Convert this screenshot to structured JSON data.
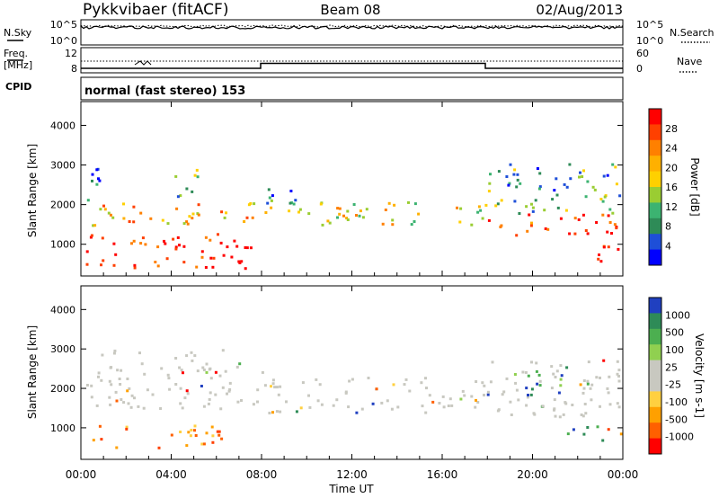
{
  "header": {
    "title": "Pykkvibaer (fitACF)",
    "beam": "Beam 08",
    "date": "02/Aug/2013"
  },
  "strip": {
    "nsky_label": "N.Sky",
    "nsky_ticks": [
      "10^5",
      "10^0"
    ],
    "nsearch_label": "N.Search",
    "nsearch_ticks": [
      "10^5",
      "10^0"
    ],
    "freq_label_1": "Freq.",
    "freq_label_2": "[MHz]",
    "freq_ticks": [
      "12",
      "8"
    ],
    "nave_label": "Nave",
    "nave_ticks": [
      "60",
      "0"
    ],
    "cpid_label": "CPID",
    "cpid_text": "normal (fast stereo) 153"
  },
  "chart_data": [
    {
      "type": "heatmap",
      "panel": "power",
      "ylabel": "Slant Range [km]",
      "yticks": [
        "1000",
        "2000",
        "3000",
        "4000"
      ],
      "ylim": [
        200,
        4600
      ],
      "colorbar": {
        "label": "Power [dB]",
        "ticks": [
          "28",
          "24",
          "20",
          "16",
          "12",
          "8",
          "4"
        ],
        "colors": [
          "#ff0000",
          "#ff4000",
          "#ff8000",
          "#ffb000",
          "#ffd000",
          "#9acd32",
          "#3cb371",
          "#2e8b57",
          "#1e4fd8",
          "#0000ff"
        ]
      },
      "x_range_hours": [
        0,
        24
      ],
      "echo_bands": [
        {
          "t": [
            0.2,
            8.0
          ],
          "r": [
            1500,
            2100
          ],
          "level": 0.65
        },
        {
          "t": [
            0.2,
            7.8
          ],
          "r": [
            400,
            1300
          ],
          "level": 0.95
        },
        {
          "t": [
            0.2,
            1.3
          ],
          "r": [
            2100,
            3100
          ],
          "level": 0.2
        },
        {
          "t": [
            4.1,
            5.4
          ],
          "r": [
            2200,
            2950
          ],
          "level": 0.3
        },
        {
          "t": [
            8.0,
            18.0
          ],
          "r": [
            1500,
            2100
          ],
          "level": 0.55
        },
        {
          "t": [
            8.0,
            11.0
          ],
          "r": [
            2050,
            2450
          ],
          "level": 0.25
        },
        {
          "t": [
            18.0,
            23.9
          ],
          "r": [
            1200,
            1800
          ],
          "level": 0.9
        },
        {
          "t": [
            18.0,
            23.9
          ],
          "r": [
            1800,
            3100
          ],
          "level": 0.3
        },
        {
          "t": [
            22.0,
            23.9
          ],
          "r": [
            600,
            1050
          ],
          "level": 0.95
        }
      ]
    },
    {
      "type": "heatmap",
      "panel": "velocity",
      "ylabel": "Slant Range [km]",
      "yticks": [
        "1000",
        "2000",
        "3000",
        "4000"
      ],
      "ylim": [
        200,
        4600
      ],
      "xlabel": "Time UT",
      "xticks": [
        "00:00",
        "04:00",
        "08:00",
        "12:00",
        "16:00",
        "20:00",
        "00:00"
      ],
      "x_range_hours": [
        0,
        24
      ],
      "colorbar": {
        "label": "Velocity [m s-1]",
        "ticks": [
          "1000",
          "500",
          "100",
          "25",
          "-25",
          "-100",
          "-500",
          "-1000"
        ],
        "colors": [
          "#2040c0",
          "#2e8b57",
          "#4caf50",
          "#90d050",
          "#c8c8c0",
          "#c8c8c0",
          "#ffd040",
          "#ffa000",
          "#ff6000",
          "#ff0000"
        ]
      },
      "echo_bands": [
        {
          "t": [
            0.2,
            8.0
          ],
          "r": [
            1500,
            3000
          ],
          "kind": "gray"
        },
        {
          "t": [
            0.5,
            6.2
          ],
          "r": [
            500,
            1100
          ],
          "kind": "orange"
        },
        {
          "t": [
            8.0,
            18.0
          ],
          "r": [
            1400,
            2300
          ],
          "kind": "gray"
        },
        {
          "t": [
            18.0,
            23.9
          ],
          "r": [
            1300,
            2800
          ],
          "kind": "gray"
        },
        {
          "t": [
            19.0,
            21.5
          ],
          "r": [
            1800,
            2600
          ],
          "kind": "green"
        },
        {
          "t": [
            21.5,
            23.5
          ],
          "r": [
            700,
            1100
          ],
          "kind": "green"
        },
        {
          "t": [
            23.0,
            23.9
          ],
          "r": [
            700,
            1000
          ],
          "kind": "orange"
        }
      ]
    }
  ]
}
